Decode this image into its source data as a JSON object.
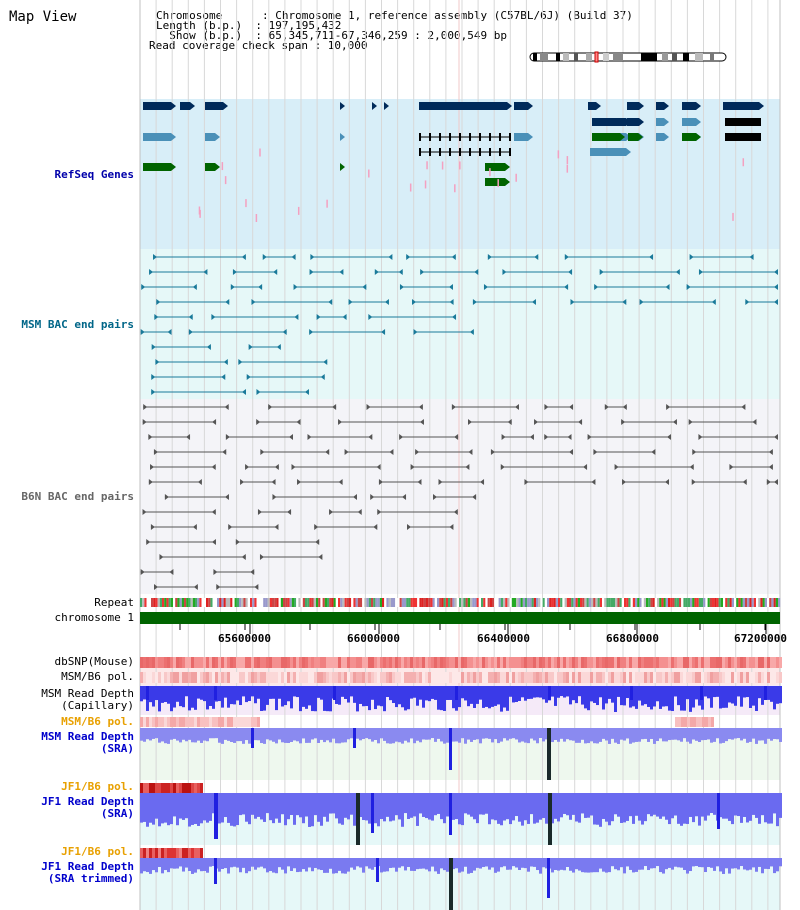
{
  "header": {
    "title": "Map View",
    "chromosome_label": "Chromosome      : Chromosome 1, reference assembly (C57BL/6J) (Build 37)",
    "length_label": "Length (b.p.)  : 197,195,432",
    "show_label": "  Show (b.p.)  : 65,345,711-67,346,259 : 2,000,549 bp",
    "coverage_label": "Read coverage check span : 10,000"
  },
  "tracks": {
    "refseq": "RefSeq Genes",
    "msm_bac": "MSM BAC end pairs",
    "b6n_bac": "B6N BAC end pairs",
    "repeat": "Repeat",
    "chromosome": "chromosome 1",
    "dbsnp": "dbSNP(Mouse)",
    "msm_pol1": "MSM/B6 pol.",
    "msm_cap": "MSM Read Depth\n(Capillary)",
    "msm_pol2": "MSM/B6 pol.",
    "msm_sra": "MSM Read Depth\n(SRA)",
    "jf1_pol1": "JF1/B6 pol.",
    "jf1_sra": "JF1 Read Depth\n(SRA)",
    "jf1_pol2": "JF1/B6 pol.",
    "jf1_trim": "JF1 Read Depth\n(SRA trimmed)"
  },
  "axis": {
    "ticks": [
      "65600000",
      "66000000",
      "66400000",
      "66800000",
      "67200000"
    ]
  },
  "colors": {
    "refseq_bg": "#d8eef8",
    "msm_bg": "#e6f8f8",
    "b6n_bg": "#f4f4f8",
    "gene_dark": "#002a5a",
    "gene_teal": "#4a90b8",
    "gene_green": "#006400",
    "bac_teal": "#1a7a9a",
    "bac_gray": "#555555",
    "depth_blue": "#3030e0"
  }
}
